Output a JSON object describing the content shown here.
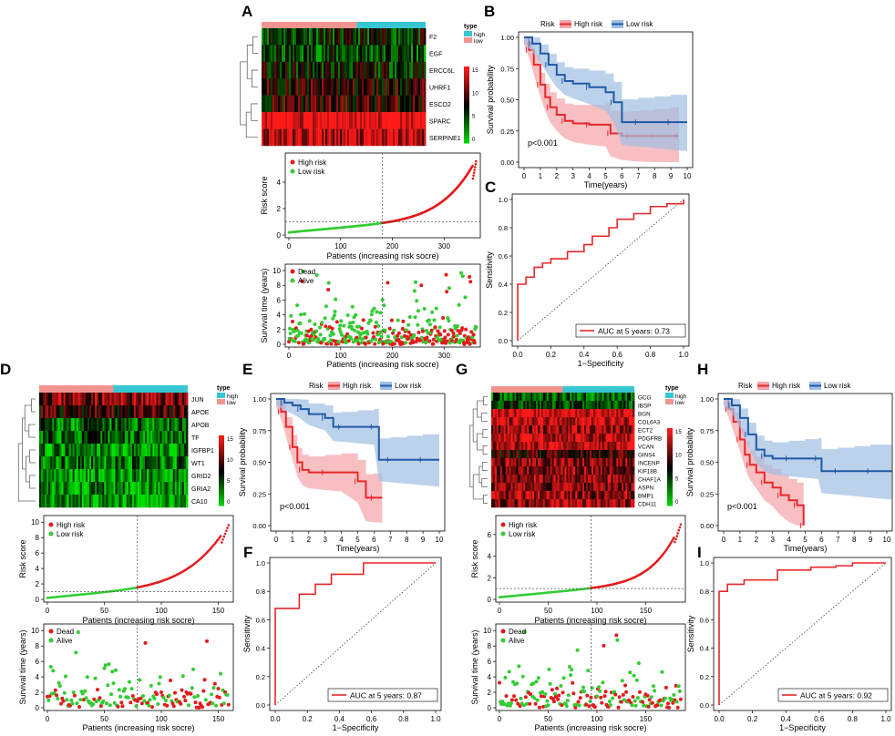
{
  "figure": {
    "colors": {
      "high": "#e8272a",
      "low": "#1f5aa6",
      "high_band": "#f4a4a8",
      "low_band": "#9fbfe3",
      "dead": "#e41a1c",
      "alive": "#33cc33",
      "type_high": "#36c7d3",
      "type_low": "#f1948f",
      "hm_green": "#00e000",
      "hm_black": "#000000",
      "hm_red": "#ff1a1a"
    }
  },
  "common": {
    "type_label": "type",
    "type_high": "high",
    "type_low": "low",
    "risk_label": "Risk",
    "high_risk": "High risk",
    "low_risk": "Low risk",
    "dead": "Dead",
    "alive": "Alive",
    "surv_ylabel": "Survival probability",
    "surv_xlabel": "Time(years)",
    "score_ylabel": "Risk score",
    "time_ylabel": "Survival time (years)",
    "patients_xlabel": "Patients (increasing risk socre)",
    "roc_xlabel": "1−Specificity",
    "roc_ylabel": "Sensitivity"
  },
  "panels": {
    "A": {
      "letter": "A",
      "genes": [
        "F2",
        "EGF",
        "ERCC6L",
        "UHRF1",
        "ESCO2",
        "SPARC",
        "SERPINE1"
      ],
      "colorbar_ticks": [
        "15",
        "10",
        "5",
        "0"
      ],
      "n_patients": 363,
      "cutoff": 181,
      "score_ticks": [
        "0",
        "2",
        "4"
      ],
      "score_xticks": [
        "0",
        "100",
        "200",
        "300"
      ],
      "time_ticks": [
        "0",
        "2",
        "4",
        "6",
        "8",
        "10"
      ],
      "time_xticks": [
        "0",
        "100",
        "200",
        "300"
      ]
    },
    "B": {
      "letter": "B",
      "pvalue": "p<0.001"
    },
    "C": {
      "letter": "C",
      "auc_label": "AUC at 5 years: 0.73"
    },
    "D": {
      "letter": "D",
      "genes": [
        "JUN",
        "APOE",
        "APOB",
        "TF",
        "IGFBP1",
        "WT1",
        "GRID2",
        "GRIA2",
        "CA10"
      ],
      "colorbar_ticks": [
        "15",
        "10",
        "5",
        "0"
      ],
      "n_patients": 160,
      "cutoff": 79,
      "score_ticks": [
        "0",
        "2",
        "4",
        "6",
        "8",
        "10"
      ],
      "score_xticks": [
        "0",
        "50",
        "100",
        "150"
      ],
      "time_ticks": [
        "0",
        "2",
        "4",
        "6",
        "8",
        "10"
      ],
      "time_xticks": [
        "0",
        "50",
        "100",
        "150"
      ]
    },
    "E": {
      "letter": "E",
      "pvalue": "p<0.001"
    },
    "F": {
      "letter": "F",
      "auc_label": "AUC at 5 years: 0.87"
    },
    "G": {
      "letter": "G",
      "genes": [
        "GCG",
        "IBSP",
        "BGN",
        "COL6A3",
        "ECT2",
        "PDGFRB",
        "VCAN",
        "GINS4",
        "INCENP",
        "KIF18B",
        "CHAF1A",
        "ASPN",
        "BMP1",
        "CDH11"
      ],
      "colorbar_ticks": [
        "15",
        "10",
        "5",
        "0"
      ],
      "n_patients": 187,
      "cutoff": 94,
      "score_ticks": [
        "0",
        "2",
        "4",
        "6"
      ],
      "score_xticks": [
        "0",
        "50",
        "100",
        "150"
      ],
      "time_ticks": [
        "0",
        "2",
        "4",
        "6",
        "8",
        "10"
      ],
      "time_xticks": [
        "0",
        "50",
        "100",
        "150"
      ]
    },
    "H": {
      "letter": "H",
      "pvalue": "p<0.001"
    },
    "I": {
      "letter": "I",
      "auc_label": "AUC at 5 years: 0.92"
    }
  },
  "chart_data": [
    {
      "panel": "B",
      "type": "line",
      "title": "",
      "xlabel": "Time(years)",
      "ylabel": "Survival probability",
      "xlim": [
        0,
        10
      ],
      "ylim": [
        0,
        1
      ],
      "xticks": [
        "0",
        "1",
        "2",
        "3",
        "4",
        "5",
        "6",
        "7",
        "8",
        "9",
        "10"
      ],
      "yticks": [
        "0.00",
        "0.25",
        "0.50",
        "0.75",
        "1.00"
      ],
      "series": [
        {
          "name": "High risk",
          "x": [
            0,
            0.3,
            0.6,
            1,
            1.3,
            1.6,
            2,
            2.5,
            3,
            4,
            5,
            5.3,
            6,
            6.5,
            7,
            8,
            9,
            9.5
          ],
          "values": [
            1,
            0.9,
            0.78,
            0.62,
            0.52,
            0.44,
            0.38,
            0.33,
            0.31,
            0.3,
            0.3,
            0.23,
            0.21,
            0.21,
            0.21,
            0.21,
            0.21,
            0.21
          ]
        },
        {
          "name": "Low risk",
          "x": [
            0,
            0.5,
            1,
            1.5,
            2,
            2.5,
            3,
            4,
            5,
            5.5,
            6,
            7,
            8,
            9,
            10
          ],
          "values": [
            1,
            0.95,
            0.87,
            0.78,
            0.7,
            0.65,
            0.63,
            0.6,
            0.56,
            0.48,
            0.32,
            0.32,
            0.32,
            0.32,
            0.32
          ]
        }
      ],
      "pvalue": "p<0.001"
    },
    {
      "panel": "C",
      "type": "line",
      "xlabel": "1−Specificity",
      "ylabel": "Sensitivity",
      "xlim": [
        0,
        1
      ],
      "ylim": [
        0,
        1
      ],
      "xticks": [
        "0.0",
        "0.2",
        "0.4",
        "0.6",
        "0.8",
        "1.0"
      ],
      "yticks": [
        "0.0",
        "0.2",
        "0.4",
        "0.6",
        "0.8",
        "1.0"
      ],
      "series": [
        {
          "name": "ROC",
          "x": [
            0,
            0,
            0.05,
            0.1,
            0.15,
            0.2,
            0.3,
            0.4,
            0.45,
            0.55,
            0.6,
            0.7,
            0.8,
            0.9,
            1
          ],
          "values": [
            0,
            0.4,
            0.45,
            0.52,
            0.55,
            0.58,
            0.63,
            0.68,
            0.74,
            0.8,
            0.86,
            0.9,
            0.95,
            0.97,
            1
          ]
        }
      ],
      "auc": 0.73
    },
    {
      "panel": "E",
      "type": "line",
      "xlabel": "Time(years)",
      "ylabel": "Survival probability",
      "xlim": [
        0,
        10
      ],
      "ylim": [
        0,
        1
      ],
      "xticks": [
        "0",
        "1",
        "2",
        "3",
        "4",
        "5",
        "6",
        "7",
        "8",
        "9",
        "10"
      ],
      "yticks": [
        "0.00",
        "0.25",
        "0.50",
        "0.75",
        "1.00"
      ],
      "series": [
        {
          "name": "High risk",
          "x": [
            0,
            0.3,
            0.6,
            1,
            1.3,
            1.6,
            2,
            3,
            4,
            5,
            5.5,
            6,
            6.5
          ],
          "values": [
            1,
            0.9,
            0.78,
            0.62,
            0.5,
            0.44,
            0.42,
            0.42,
            0.42,
            0.35,
            0.22,
            0.22,
            0.22
          ]
        },
        {
          "name": "Low risk",
          "x": [
            0,
            0.5,
            1,
            1.5,
            2,
            3,
            3.5,
            4,
            5,
            6,
            6.3,
            7,
            8,
            9,
            10
          ],
          "values": [
            1,
            0.97,
            0.95,
            0.92,
            0.88,
            0.85,
            0.78,
            0.78,
            0.78,
            0.78,
            0.52,
            0.52,
            0.52,
            0.52,
            0.52
          ]
        }
      ],
      "pvalue": "p<0.001"
    },
    {
      "panel": "F",
      "type": "line",
      "xlabel": "1−Specificity",
      "ylabel": "Sensitivity",
      "xlim": [
        0,
        1
      ],
      "ylim": [
        0,
        1
      ],
      "xticks": [
        "0.0",
        "0.2",
        "0.4",
        "0.6",
        "0.8",
        "1.0"
      ],
      "yticks": [
        "0.0",
        "0.2",
        "0.4",
        "0.6",
        "0.8",
        "1.0"
      ],
      "series": [
        {
          "name": "ROC",
          "x": [
            0,
            0,
            0.15,
            0.15,
            0.25,
            0.25,
            0.35,
            0.35,
            0.55,
            0.55,
            1
          ],
          "values": [
            0,
            0.68,
            0.68,
            0.78,
            0.78,
            0.85,
            0.85,
            0.92,
            0.92,
            1,
            1
          ]
        }
      ],
      "auc": 0.87
    },
    {
      "panel": "H",
      "type": "line",
      "xlabel": "Time(years)",
      "ylabel": "Survival probability",
      "xlim": [
        0,
        10
      ],
      "ylim": [
        0,
        1
      ],
      "xticks": [
        "0",
        "1",
        "2",
        "3",
        "4",
        "5",
        "6",
        "7",
        "8",
        "9",
        "10"
      ],
      "yticks": [
        "0.00",
        "0.25",
        "0.50",
        "0.75",
        "1.00"
      ],
      "series": [
        {
          "name": "High risk",
          "x": [
            0,
            0.3,
            0.6,
            1,
            1.3,
            1.6,
            2,
            2.5,
            3,
            3.5,
            4,
            4.5,
            4.8,
            4.9
          ],
          "values": [
            1,
            0.92,
            0.82,
            0.68,
            0.56,
            0.48,
            0.42,
            0.34,
            0.3,
            0.24,
            0.2,
            0.16,
            0.16,
            0
          ]
        },
        {
          "name": "Low risk",
          "x": [
            0,
            0.5,
            1,
            1.5,
            2,
            2.5,
            3,
            4,
            5,
            5.8,
            6,
            7,
            8,
            9,
            10.3
          ],
          "values": [
            1,
            0.95,
            0.85,
            0.72,
            0.6,
            0.55,
            0.53,
            0.53,
            0.53,
            0.53,
            0.43,
            0.43,
            0.43,
            0.43,
            0.43
          ]
        }
      ],
      "pvalue": "p<0.001"
    },
    {
      "panel": "I",
      "type": "line",
      "xlabel": "1−Specificity",
      "ylabel": "Sensitivity",
      "xlim": [
        0,
        1
      ],
      "ylim": [
        0,
        1
      ],
      "xticks": [
        "0.0",
        "0.2",
        "0.4",
        "0.6",
        "0.8",
        "1.0"
      ],
      "yticks": [
        "0.0",
        "0.2",
        "0.4",
        "0.6",
        "0.8",
        "1.0"
      ],
      "series": [
        {
          "name": "ROC",
          "x": [
            0,
            0,
            0.05,
            0.05,
            0.15,
            0.15,
            0.35,
            0.35,
            0.55,
            0.55,
            0.7,
            0.8,
            1
          ],
          "values": [
            0,
            0.8,
            0.8,
            0.85,
            0.85,
            0.88,
            0.88,
            0.95,
            0.95,
            0.97,
            0.98,
            1,
            1
          ]
        }
      ],
      "auc": 0.92
    }
  ]
}
